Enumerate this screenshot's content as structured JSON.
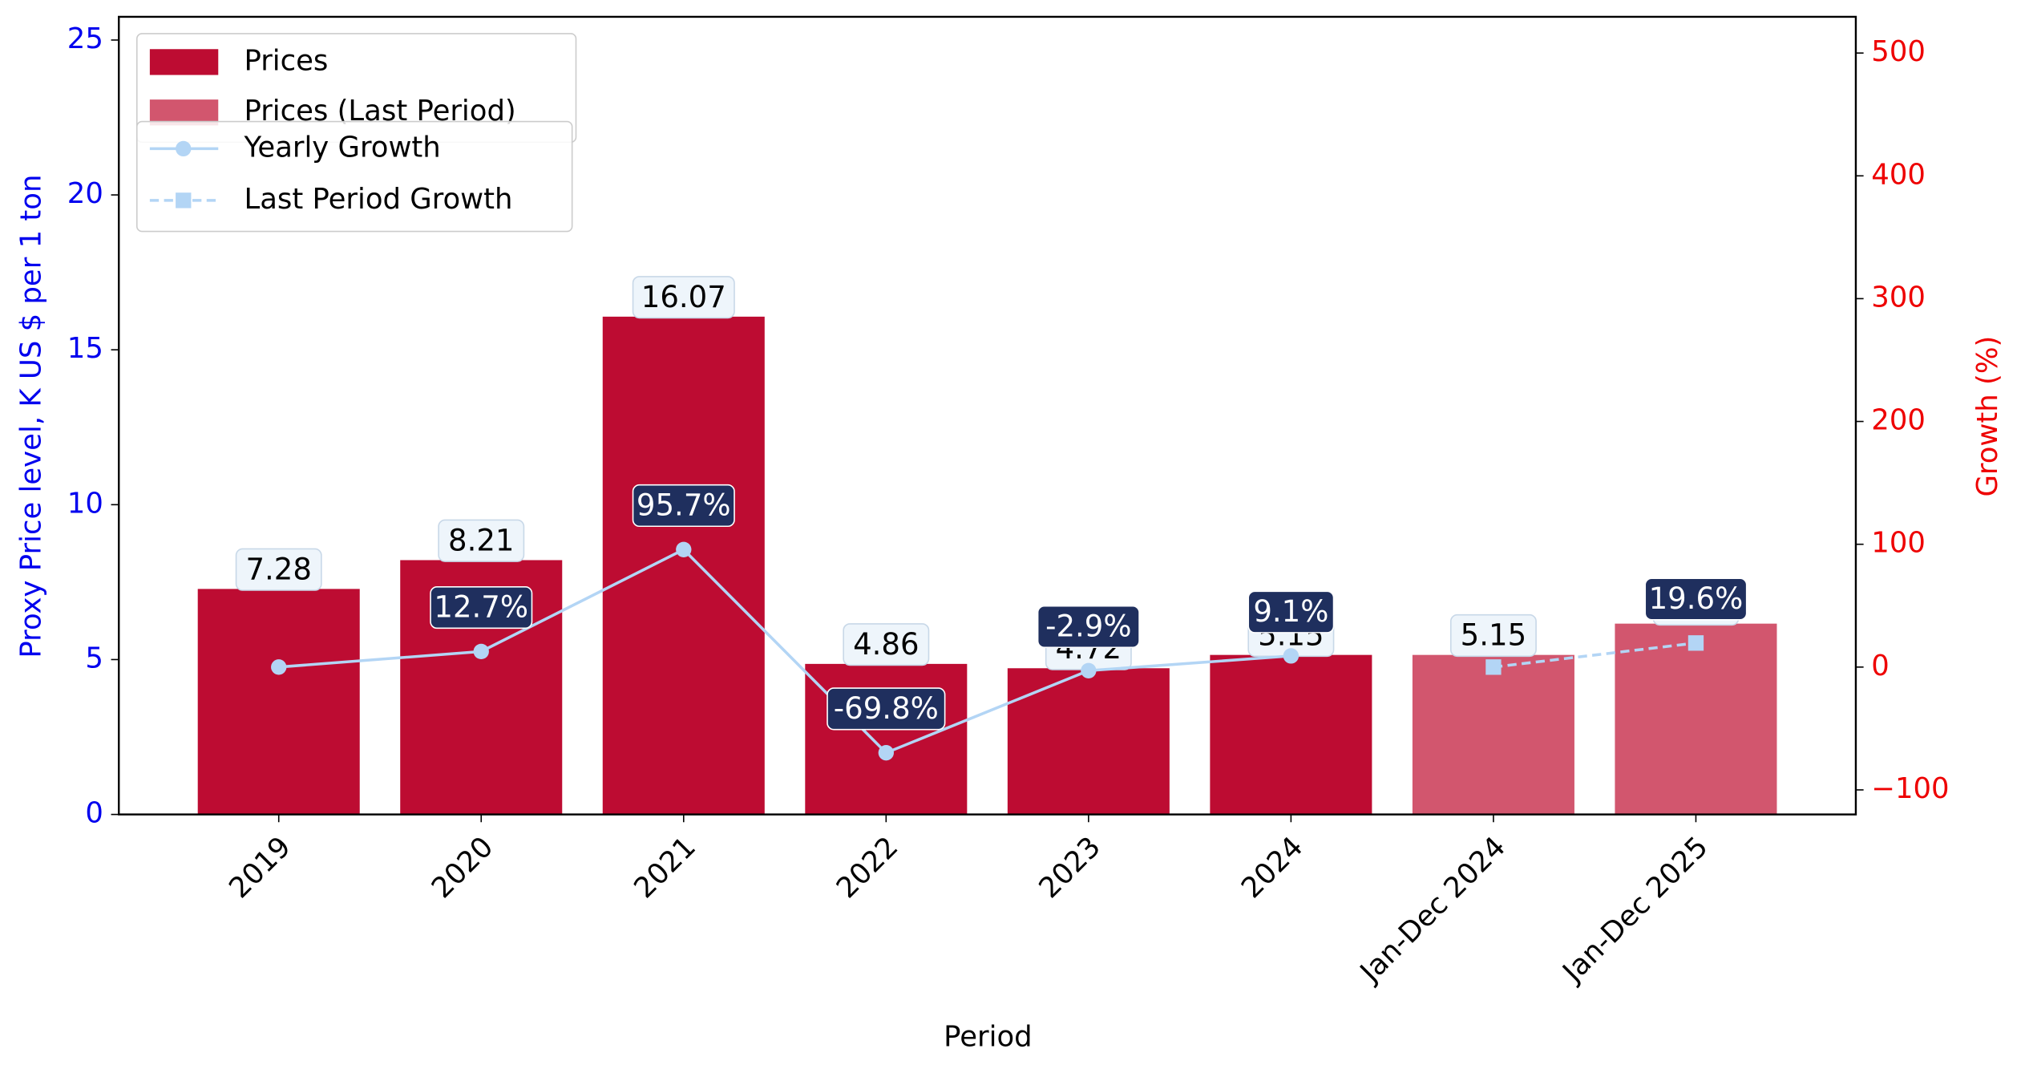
{
  "chart_data": {
    "type": "bar",
    "x_label": "Period",
    "y_label": "Proxy Price level, K US $ per 1 ton",
    "y2_label": "Growth (%)",
    "categories": [
      "2019",
      "2020",
      "2021",
      "2022",
      "2023",
      "2024",
      "Jan-Dec 2024",
      "Jan-Dec 2025"
    ],
    "ylim": [
      0,
      25.75
    ],
    "yticks": [
      0,
      5,
      10,
      15,
      20,
      25
    ],
    "y2lim": [
      -120,
      529.5
    ],
    "y2ticks": [
      {
        "value": -100,
        "label": "−100"
      },
      0,
      100,
      200,
      300,
      400,
      500
    ],
    "y_color": "#0000ee",
    "y2_color": "#ee0000",
    "series": [
      {
        "name": "Prices",
        "type": "bar",
        "color": "#bd0c32",
        "values": [
          7.28,
          8.21,
          16.07,
          4.86,
          4.72,
          5.15,
          null,
          null
        ]
      },
      {
        "name": "Prices (Last Period)",
        "type": "bar",
        "color": "#d2566e",
        "values": [
          null,
          null,
          null,
          null,
          null,
          null,
          5.15,
          6.16
        ]
      },
      {
        "name": "Yearly Growth",
        "type": "line",
        "axis": "y2",
        "color": "#b3d5f5",
        "marker": "circle",
        "dashed": false,
        "values": [
          0,
          12.7,
          95.7,
          -69.8,
          -2.9,
          9.1,
          null,
          null
        ],
        "value_labels": [
          null,
          "12.7%",
          "95.7%",
          "-69.8%",
          "-2.9%",
          "9.1%",
          null,
          null
        ]
      },
      {
        "name": "Last Period Growth",
        "type": "line",
        "axis": "y2",
        "color": "#b3d5f5",
        "marker": "square",
        "dashed": true,
        "values": [
          null,
          null,
          null,
          null,
          null,
          null,
          0,
          19.6
        ],
        "value_labels": [
          null,
          null,
          null,
          null,
          null,
          null,
          null,
          "19.6%"
        ]
      }
    ]
  }
}
